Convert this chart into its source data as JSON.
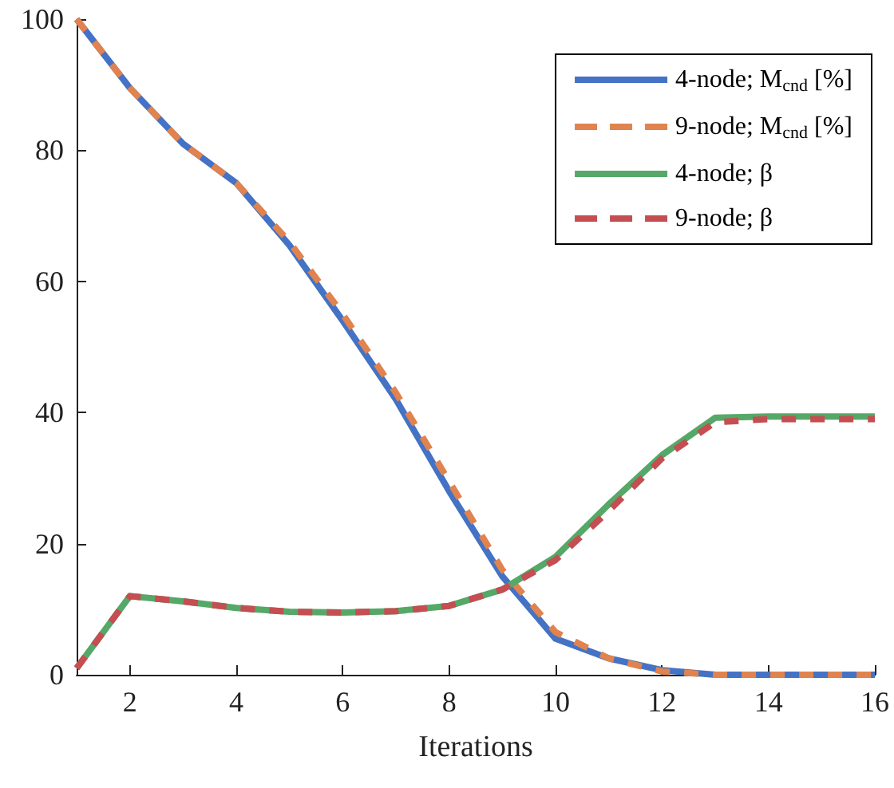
{
  "chart_data": {
    "type": "line",
    "xlabel": "Iterations",
    "x": [
      1,
      2,
      3,
      4,
      5,
      6,
      7,
      8,
      9,
      10,
      11,
      12,
      13,
      14,
      15,
      16
    ],
    "xlim": [
      1,
      16
    ],
    "xticks": [
      2,
      4,
      6,
      8,
      10,
      12,
      14,
      16
    ],
    "ylim": [
      0,
      100
    ],
    "yticks": [
      0,
      20,
      40,
      60,
      80,
      100
    ],
    "grid": false,
    "legend": "top right",
    "marker": "none",
    "series": [
      {
        "name": "4-node; M$_{cnd}$ [%]",
        "color": "#4472c4",
        "line_style": "solid",
        "values": [
          100,
          89.5,
          81,
          75,
          65.5,
          54,
          42,
          28,
          15,
          5.5,
          2.5,
          0.7,
          0,
          0,
          0,
          0
        ]
      },
      {
        "name": "9-node; M$_{cnd}$ [%]",
        "color": "#e0834f",
        "line_style": "dashed",
        "values": [
          100,
          89.5,
          81,
          75,
          66,
          55,
          43,
          29.5,
          16,
          6.5,
          2.5,
          0.5,
          0,
          0,
          0,
          0
        ]
      },
      {
        "name": "4-node; β",
        "color": "#55a868",
        "line_style": "solid",
        "values": [
          1,
          12,
          11.2,
          10.2,
          9.6,
          9.5,
          9.7,
          10.5,
          13,
          18,
          26,
          33.5,
          39.2,
          39.4,
          39.4,
          39.4
        ]
      },
      {
        "name": "9-node; β",
        "color": "#c44e52",
        "line_style": "dashed",
        "values": [
          1,
          12,
          11.2,
          10.2,
          9.6,
          9.5,
          9.7,
          10.5,
          13,
          17.5,
          25,
          33,
          38.5,
          39,
          39,
          39
        ]
      }
    ]
  }
}
